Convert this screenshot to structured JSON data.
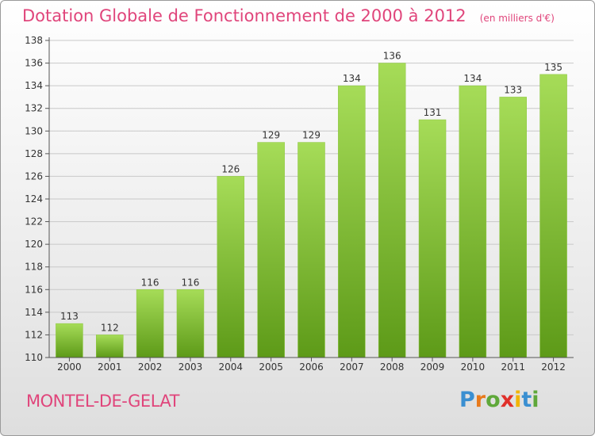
{
  "header": {
    "title": "Dotation Globale de Fonctionnement de 2000 à 2012",
    "unit": "(en milliers d'€)"
  },
  "footer": {
    "place": "MONTEL-DE-GELAT",
    "brand_letters": [
      "P",
      "r",
      "o",
      "x",
      "i",
      "t",
      "i"
    ],
    "brand_colors": [
      "#3a8fd1",
      "#e87a1c",
      "#5fa83a",
      "#e0302a",
      "#f2b400",
      "#3a8fd1",
      "#5fa83a"
    ]
  },
  "colors": {
    "bar_light": "#a6dc58",
    "bar_dark": "#5d9a18",
    "axis": "#555555",
    "grid": "#c8c8c8",
    "title": "#e0457b"
  },
  "chart_data": {
    "type": "bar",
    "title": "Dotation Globale de Fonctionnement de 2000 à 2012",
    "subtitle": "(en milliers d'€)",
    "xlabel": "",
    "ylabel": "",
    "categories": [
      "2000",
      "2001",
      "2002",
      "2003",
      "2004",
      "2005",
      "2006",
      "2007",
      "2008",
      "2009",
      "2010",
      "2011",
      "2012"
    ],
    "values": [
      113,
      112,
      116,
      116,
      126,
      129,
      129,
      134,
      136,
      131,
      134,
      133,
      135
    ],
    "ylim": [
      110,
      138
    ],
    "yticks": [
      110,
      112,
      114,
      116,
      118,
      120,
      122,
      124,
      126,
      128,
      130,
      132,
      134,
      136,
      138
    ],
    "grid": "horizontal",
    "legend": "none"
  }
}
